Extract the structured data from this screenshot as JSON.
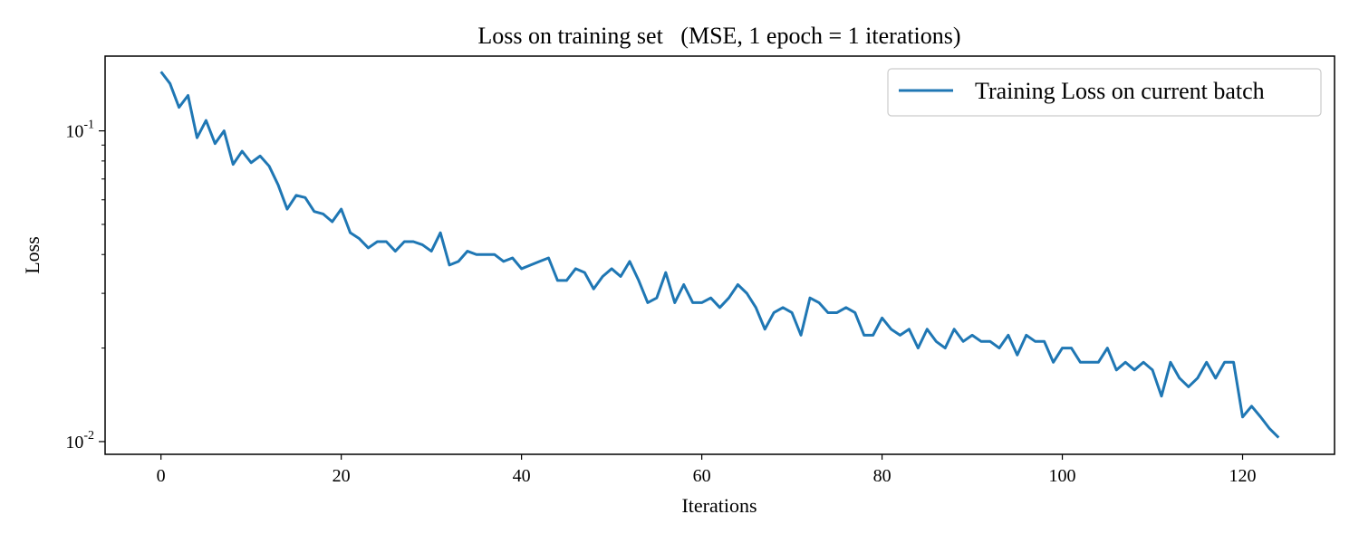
{
  "chart_data": {
    "type": "line",
    "title": "Loss on training set   (MSE, 1 epoch = 1 iterations)",
    "xlabel": "Iterations",
    "ylabel": "Loss",
    "xlim": [
      -6.2,
      130.2
    ],
    "ylim": [
      0.0091,
      0.174
    ],
    "yscale": "log",
    "xticks": [
      0,
      20,
      40,
      60,
      80,
      100,
      120
    ],
    "xtick_labels": [
      "0",
      "20",
      "40",
      "60",
      "80",
      "100",
      "120"
    ],
    "yticks": [
      0.01,
      0.1
    ],
    "ytick_labels": [
      {
        "base": "10",
        "exp": "-2"
      },
      {
        "base": "10",
        "exp": "-1"
      }
    ],
    "grid": false,
    "legend_position": "top-right",
    "series": [
      {
        "name": "Training Loss on current batch",
        "color": "#1f77b4",
        "y": [
          0.155,
          0.142,
          0.119,
          0.13,
          0.095,
          0.108,
          0.091,
          0.1,
          0.078,
          0.086,
          0.079,
          0.083,
          0.077,
          0.067,
          0.056,
          0.062,
          0.061,
          0.055,
          0.054,
          0.051,
          0.056,
          0.047,
          0.045,
          0.042,
          0.044,
          0.044,
          0.041,
          0.044,
          0.044,
          0.043,
          0.041,
          0.047,
          0.037,
          0.038,
          0.041,
          0.04,
          0.04,
          0.04,
          0.038,
          0.039,
          0.036,
          0.037,
          0.038,
          0.039,
          0.033,
          0.033,
          0.036,
          0.035,
          0.031,
          0.034,
          0.036,
          0.034,
          0.038,
          0.033,
          0.028,
          0.029,
          0.035,
          0.028,
          0.032,
          0.028,
          0.028,
          0.029,
          0.027,
          0.029,
          0.032,
          0.03,
          0.027,
          0.023,
          0.026,
          0.027,
          0.026,
          0.022,
          0.029,
          0.028,
          0.026,
          0.026,
          0.027,
          0.026,
          0.022,
          0.022,
          0.025,
          0.023,
          0.022,
          0.023,
          0.02,
          0.023,
          0.021,
          0.02,
          0.023,
          0.021,
          0.022,
          0.021,
          0.021,
          0.02,
          0.022,
          0.019,
          0.022,
          0.021,
          0.021,
          0.018,
          0.02,
          0.02,
          0.018,
          0.018,
          0.018,
          0.02,
          0.017,
          0.018,
          0.017,
          0.018,
          0.017,
          0.014,
          0.018,
          0.016,
          0.015,
          0.016,
          0.018,
          0.016,
          0.018,
          0.018,
          0.012,
          0.013,
          0.012,
          0.011,
          0.0103
        ]
      }
    ]
  }
}
